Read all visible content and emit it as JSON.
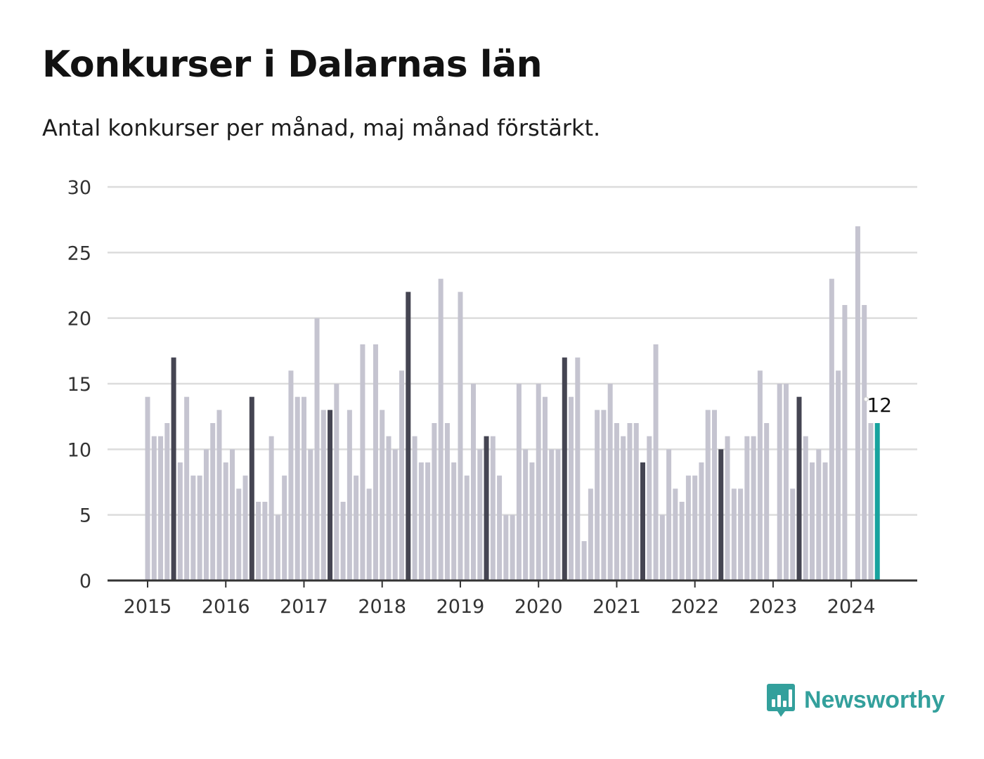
{
  "title": "Konkurser i Dalarnas län",
  "subtitle": "Antal konkurser per månad, maj månad förstärkt.",
  "brand": {
    "name": "Newsworthy",
    "icon": "bar-chart-speech-bubble-icon"
  },
  "colors": {
    "bar_default": "#c5c4d0",
    "bar_may": "#454552",
    "bar_latest": "#17a39e",
    "grid": "#dcdcdc",
    "axis": "#333333",
    "brand": "#33a09c"
  },
  "chart_data": {
    "type": "bar",
    "x_start": "2015-01",
    "x_end": "2024-05",
    "interval": "month",
    "highlight": "May bars emphasized; latest bar (2024-05) in accent color with value label",
    "values": [
      14,
      11,
      11,
      12,
      17,
      9,
      14,
      8,
      8,
      10,
      12,
      13,
      9,
      10,
      7,
      8,
      14,
      6,
      6,
      11,
      5,
      8,
      16,
      14,
      14,
      10,
      20,
      13,
      13,
      15,
      6,
      13,
      8,
      18,
      7,
      18,
      13,
      11,
      10,
      16,
      22,
      11,
      9,
      9,
      12,
      23,
      12,
      9,
      22,
      8,
      15,
      10,
      11,
      11,
      8,
      5,
      5,
      15,
      10,
      9,
      15,
      14,
      10,
      10,
      17,
      14,
      17,
      3,
      7,
      13,
      13,
      15,
      12,
      11,
      12,
      12,
      9,
      11,
      18,
      5,
      10,
      7,
      6,
      8,
      8,
      9,
      13,
      13,
      10,
      11,
      7,
      7,
      11,
      11,
      16,
      12,
      0,
      15,
      15,
      7,
      14,
      11,
      9,
      10,
      9,
      23,
      16,
      21,
      0,
      27,
      21,
      12,
      12
    ],
    "x_ticks": [
      "2015",
      "2016",
      "2017",
      "2018",
      "2019",
      "2020",
      "2021",
      "2022",
      "2023",
      "2024"
    ],
    "y_ticks": [
      0,
      5,
      10,
      15,
      20,
      25,
      30
    ],
    "ylim": [
      0,
      30
    ],
    "grid": true,
    "annotation": {
      "label": "12",
      "target": "2024-05"
    }
  }
}
